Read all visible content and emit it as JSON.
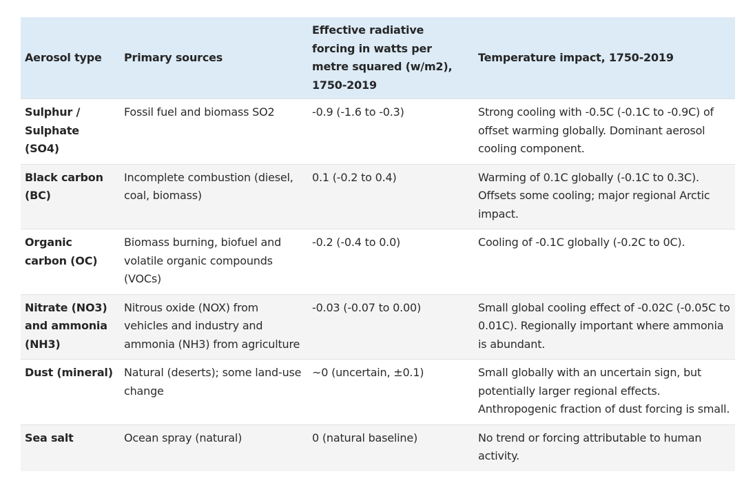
{
  "table": {
    "headers": [
      "Aerosol type",
      "Primary sources",
      "Effective radiative forcing in watts per metre squared (w/m2), 1750-2019",
      "Temperature impact, 1750-2019"
    ],
    "rows": [
      {
        "type": "Sulphur / Sulphate (SO4)",
        "sources": "Fossil fuel and biomass SO2",
        "forcing": "-0.9 (-1.6 to -0.3)",
        "impact": "Strong cooling with -0.5C (-0.1C to -0.9C) of offset warming globally. Dominant aerosol cooling component."
      },
      {
        "type": "Black carbon (BC)",
        "sources": "Incomplete combustion (diesel, coal, biomass)",
        "forcing": "0.1 (-0.2 to 0.4)",
        "impact": "Warming of 0.1C globally (-0.1C to 0.3C). Offsets some cooling; major regional Arctic impact."
      },
      {
        "type": "Organic carbon (OC)",
        "sources": "Biomass burning, biofuel and volatile organic compounds (VOCs)",
        "forcing": "-0.2 (-0.4 to 0.0)",
        "impact": "Cooling of -0.1C globally (-0.2C to 0C)."
      },
      {
        "type": "Nitrate (NO3) and ammonia (NH3)",
        "sources": "Nitrous oxide (NOX) from vehicles and industry and ammonia (NH3) from agriculture",
        "forcing": "-0.03 (-0.07 to 0.00)",
        "impact": "Small global cooling effect of -0.02C (-0.05C to 0.01C). Regionally important where ammonia is abundant."
      },
      {
        "type": "Dust (mineral)",
        "sources": "Natural (deserts); some land-use change",
        "forcing": "~0 (uncertain, ±0.1)",
        "impact": "Small globally with an uncertain sign, but potentially larger regional effects. Anthropogenic fraction of dust forcing is small."
      },
      {
        "type": "Sea salt",
        "sources": "Ocean spray (natural)",
        "forcing": "0 (natural baseline)",
        "impact": "No trend or forcing attributable to human activity."
      }
    ]
  }
}
